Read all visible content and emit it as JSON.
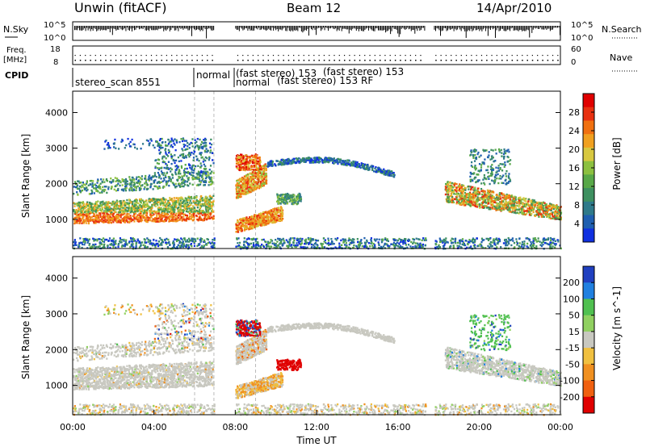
{
  "header": {
    "station": "Unwin (fitACF)",
    "beam": "Beam 12",
    "date": "14/Apr/2010"
  },
  "noise_panel": {
    "left_label": "N.Sky",
    "left_ticks": [
      "10^5",
      "10^0"
    ],
    "right_label": "N.Search",
    "right_ticks": [
      "10^5",
      "10^0"
    ]
  },
  "freq_panel": {
    "left_label_1": "Freq.",
    "left_label_2": "[MHz]",
    "left_ticks": [
      "18",
      "8"
    ],
    "right_label": "Nave",
    "right_ticks": [
      "60",
      "0"
    ]
  },
  "cpid": {
    "label": "CPID",
    "segments": [
      {
        "start": 0.0,
        "text": "stereo_scan 8551"
      },
      {
        "start": 6.0,
        "text": "normal"
      },
      {
        "start": 8.0,
        "text": "normal"
      },
      {
        "start": 8.0,
        "text": "(fast stereo) 153"
      },
      {
        "start": 9.0,
        "text": "(fast stereo)  153 RF"
      },
      {
        "start": 10.5,
        "text": "(fast stereo) 153"
      }
    ]
  },
  "chart_data": [
    {
      "type": "heatmap",
      "name": "power",
      "ylabel": "Slant Range [km]",
      "yticks": [
        1000,
        2000,
        3000,
        4000
      ],
      "ylim": [
        180,
        4600
      ],
      "x_hours": [
        0,
        24
      ],
      "colorbar_label": "Power [dB]",
      "colorbar_ticks": [
        4,
        8,
        12,
        16,
        20,
        24,
        28
      ],
      "colorbar_range": [
        0,
        32
      ],
      "colors": [
        "#1030e0",
        "#1f5fb0",
        "#2f7a8a",
        "#3e9060",
        "#58a848",
        "#8cc040",
        "#d8c840",
        "#f0a020",
        "#f07010",
        "#e83010",
        "#e00000"
      ],
      "data_gaps_hours": [
        [
          6.95,
          8.0
        ],
        [
          17.35,
          17.75
        ]
      ]
    },
    {
      "type": "heatmap",
      "name": "velocity",
      "ylabel": "Slant Range [km]",
      "yticks": [
        1000,
        2000,
        3000,
        4000
      ],
      "ylim": [
        180,
        4600
      ],
      "x_hours": [
        0,
        24
      ],
      "xlabel": "Time UT",
      "xticks": [
        "00:00",
        "04:00",
        "08:00",
        "12:00",
        "16:00",
        "20:00",
        "00:00"
      ],
      "colorbar_label": "Velocity [m s^-1]",
      "colorbar_ticks": [
        200,
        100,
        50,
        15,
        -15,
        -50,
        -100,
        -200
      ],
      "colors": [
        "#2040c0",
        "#2080e0",
        "#50c050",
        "#90d060",
        "#c8c8c0",
        "#f0c040",
        "#f09020",
        "#f06010",
        "#e00000"
      ]
    }
  ]
}
